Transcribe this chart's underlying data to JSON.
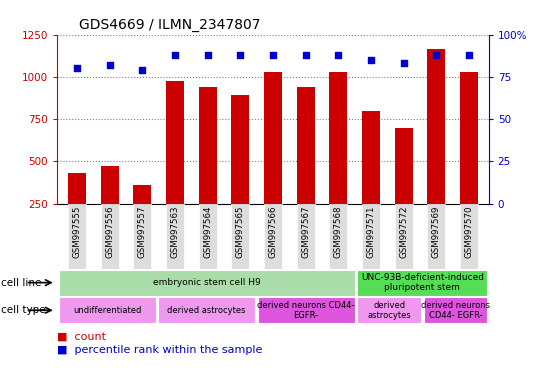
{
  "title": "GDS4669 / ILMN_2347807",
  "samples": [
    "GSM997555",
    "GSM997556",
    "GSM997557",
    "GSM997563",
    "GSM997564",
    "GSM997565",
    "GSM997566",
    "GSM997567",
    "GSM997568",
    "GSM997571",
    "GSM997572",
    "GSM997569",
    "GSM997570"
  ],
  "counts": [
    430,
    470,
    360,
    975,
    940,
    895,
    1030,
    940,
    1030,
    800,
    695,
    1165,
    1030
  ],
  "percentile_ranks": [
    80,
    82,
    79,
    88,
    88,
    88,
    88,
    88,
    88,
    85,
    83,
    88,
    88
  ],
  "bar_color": "#cc0000",
  "dot_color": "#0000cc",
  "ylim_left": [
    250,
    1250
  ],
  "ylim_right": [
    0,
    100
  ],
  "yticks_left": [
    250,
    500,
    750,
    1000,
    1250
  ],
  "yticks_right": [
    0,
    25,
    50,
    75,
    100
  ],
  "cell_line_groups": [
    {
      "label": "embryonic stem cell H9",
      "start": 0,
      "end": 9,
      "color": "#aaddaa"
    },
    {
      "label": "UNC-93B-deficient-induced\npluripotent stem",
      "start": 9,
      "end": 13,
      "color": "#55dd55"
    }
  ],
  "cell_type_groups": [
    {
      "label": "undifferentiated",
      "start": 0,
      "end": 3,
      "color": "#ee99ee"
    },
    {
      "label": "derived astrocytes",
      "start": 3,
      "end": 6,
      "color": "#ee99ee"
    },
    {
      "label": "derived neurons CD44-\nEGFR-",
      "start": 6,
      "end": 9,
      "color": "#dd55dd"
    },
    {
      "label": "derived\nastrocytes",
      "start": 9,
      "end": 11,
      "color": "#ee99ee"
    },
    {
      "label": "derived neurons\nCD44- EGFR-",
      "start": 11,
      "end": 13,
      "color": "#dd55dd"
    }
  ],
  "tick_bg_color": "#dddddd",
  "legend_count_color": "#cc0000",
  "legend_dot_color": "#0000cc"
}
